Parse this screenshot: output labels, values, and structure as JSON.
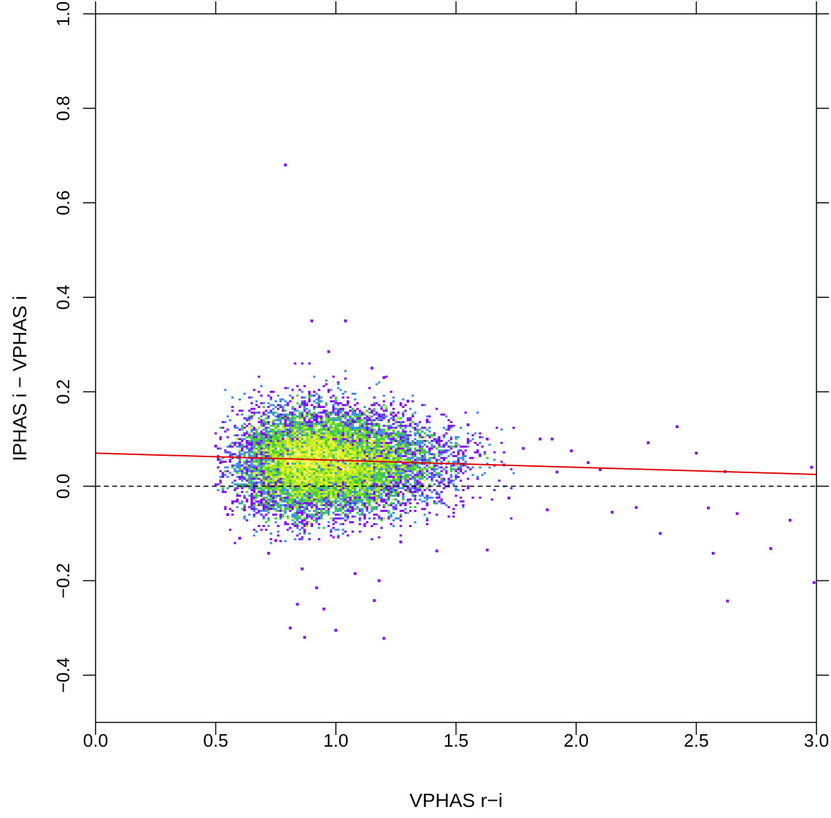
{
  "chart_data": {
    "type": "scatter",
    "title": "",
    "xlabel": "VPHAS r−i",
    "ylabel": "IPHAS i − VPHAS i",
    "xlim": [
      0.0,
      3.0
    ],
    "ylim": [
      -0.5,
      1.0
    ],
    "xticks": [
      "0.0",
      "0.5",
      "1.0",
      "1.5",
      "2.0",
      "2.5",
      "3.0"
    ],
    "yticks": [
      "−0.4",
      "−0.2",
      "0.0",
      "0.2",
      "0.4",
      "0.6",
      "0.8",
      "1.0"
    ],
    "grid": false,
    "legend": "none",
    "density_colors": [
      "#7f00ff",
      "#3c8cf0",
      "#3ccc3c",
      "#a0e61e",
      "#f0f01e",
      "#f5f58c"
    ],
    "reference_line": {
      "y": 0.0,
      "style": "dashed",
      "color": "#000000"
    },
    "fit_line": {
      "x": [
        0.0,
        3.0
      ],
      "y": [
        0.07,
        0.025
      ],
      "color": "#e00000"
    },
    "density_core": {
      "center": [
        0.9,
        0.05
      ],
      "spread": [
        0.18,
        0.055
      ],
      "x_range": [
        0.5,
        1.75
      ],
      "y_range": [
        -0.12,
        0.28
      ]
    },
    "outliers": [
      [
        0.79,
        0.68
      ],
      [
        0.9,
        0.35
      ],
      [
        1.04,
        0.35
      ],
      [
        0.97,
        0.285
      ],
      [
        1.15,
        0.25
      ],
      [
        1.2,
        0.23
      ],
      [
        1.55,
        0.13
      ],
      [
        1.63,
        0.1
      ],
      [
        1.78,
        0.08
      ],
      [
        1.85,
        0.1
      ],
      [
        1.9,
        0.1
      ],
      [
        1.98,
        0.075
      ],
      [
        2.05,
        0.05
      ],
      [
        2.1,
        0.035
      ],
      [
        2.3,
        0.092
      ],
      [
        2.42,
        0.126
      ],
      [
        2.5,
        0.07
      ],
      [
        2.62,
        0.031
      ],
      [
        2.98,
        0.04
      ],
      [
        1.72,
        -0.025
      ],
      [
        1.88,
        -0.05
      ],
      [
        2.15,
        -0.055
      ],
      [
        2.25,
        -0.045
      ],
      [
        2.35,
        -0.1
      ],
      [
        2.55,
        -0.046
      ],
      [
        2.57,
        -0.142
      ],
      [
        2.63,
        -0.243
      ],
      [
        2.67,
        -0.058
      ],
      [
        2.81,
        -0.132
      ],
      [
        2.89,
        -0.072
      ],
      [
        2.99,
        -0.204
      ],
      [
        1.42,
        -0.137
      ],
      [
        1.27,
        -0.118
      ],
      [
        1.18,
        -0.2
      ],
      [
        1.16,
        -0.242
      ],
      [
        1.2,
        -0.322
      ],
      [
        1.0,
        -0.305
      ],
      [
        0.87,
        -0.32
      ],
      [
        0.86,
        -0.175
      ],
      [
        0.84,
        -0.25
      ],
      [
        0.81,
        -0.3
      ],
      [
        0.75,
        -0.115
      ],
      [
        0.72,
        -0.142
      ],
      [
        0.95,
        -0.26
      ],
      [
        0.92,
        -0.215
      ],
      [
        1.08,
        -0.185
      ],
      [
        0.6,
        -0.11
      ],
      [
        0.55,
        -0.06
      ],
      [
        1.63,
        -0.135
      ],
      [
        1.3,
        0.18
      ],
      [
        1.25,
        0.15
      ],
      [
        0.7,
        0.11
      ],
      [
        0.68,
        0.09
      ],
      [
        0.5,
        0.085
      ],
      [
        0.52,
        0.05
      ],
      [
        0.62,
        -0.05
      ],
      [
        1.38,
        0.14
      ],
      [
        1.6,
        0.065
      ],
      [
        1.7,
        0.045
      ],
      [
        1.92,
        0.03
      ]
    ]
  }
}
